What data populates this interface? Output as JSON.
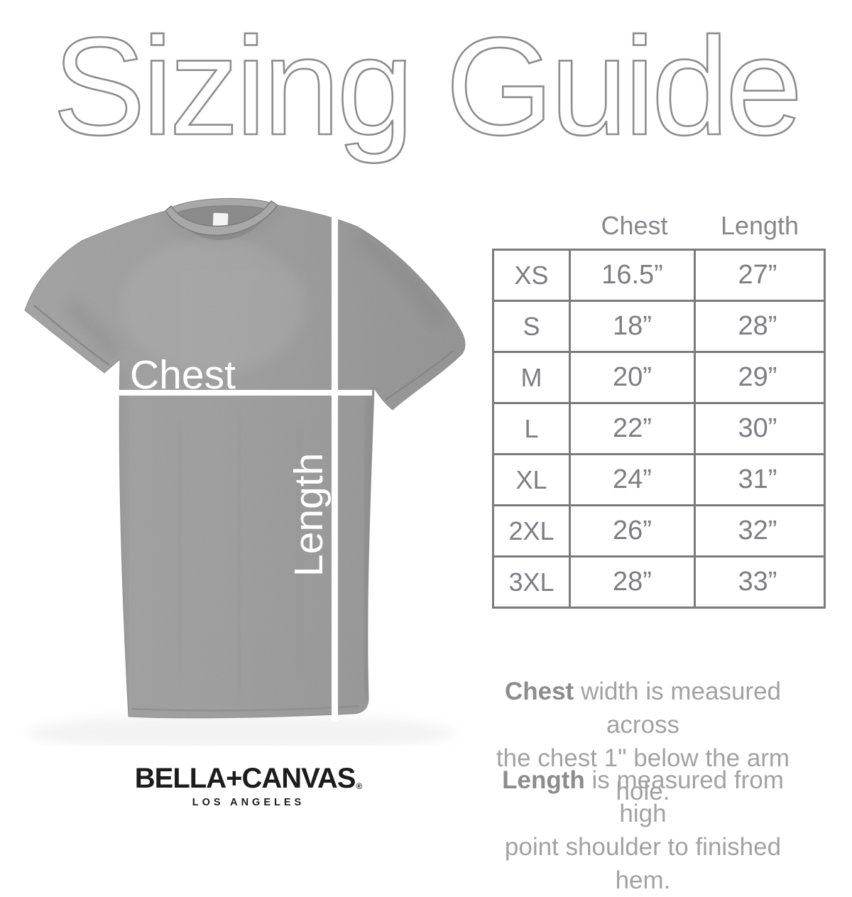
{
  "title": "Sizing Guide",
  "diagram": {
    "chest_label": "Chest",
    "length_label": "Length"
  },
  "size_table": {
    "columns": [
      "Chest",
      "Length"
    ],
    "rows": [
      {
        "size": "XS",
        "chest": "16.5”",
        "length": "27”"
      },
      {
        "size": "S",
        "chest": "18”",
        "length": "28”"
      },
      {
        "size": "M",
        "chest": "20”",
        "length": "29”"
      },
      {
        "size": "L",
        "chest": "22”",
        "length": "30”"
      },
      {
        "size": "XL",
        "chest": "24”",
        "length": "31”"
      },
      {
        "size": "2XL",
        "chest": "26”",
        "length": "32”"
      },
      {
        "size": "3XL",
        "chest": "28”",
        "length": "33”"
      }
    ]
  },
  "notes": [
    {
      "lead": "Chest",
      "line1": " width is measured across",
      "line2": "the chest 1\" below the arm hole."
    },
    {
      "lead": "Length",
      "line1": " is measured from high",
      "line2": "point shoulder to finished hem."
    }
  ],
  "brand": {
    "wordmark": "BELLA+CANVAS",
    "registered": "®",
    "city": "LOS ANGELES"
  },
  "colors": {
    "background": "#ffffff",
    "title_gray": "#8d8d8d",
    "table_border": "#7b7b7b",
    "table_text": "#7d7d83",
    "note_text": "#a2a2a2",
    "shirt_gray": "#9b9b9b",
    "measure_line": "#ffffff",
    "brand_black": "#1c1c1c"
  }
}
